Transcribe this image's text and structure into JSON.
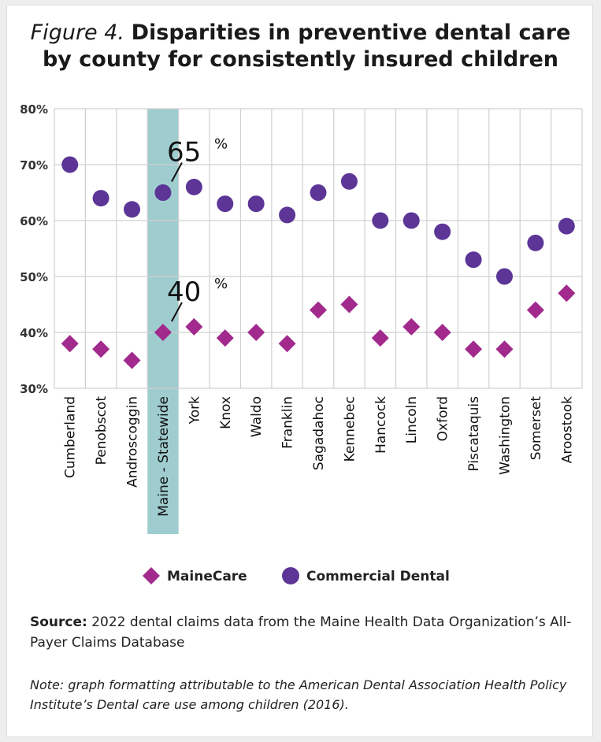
{
  "title": {
    "figure_label": "Figure 4.",
    "line1": "Disparities in preventive dental care",
    "line2": "by county for consistently insured children"
  },
  "colors": {
    "mainecare": "#a12a8c",
    "commercial": "#5c3596",
    "highlight": "#9fcdcf",
    "grid": "#d0d0d0"
  },
  "chart_data": {
    "type": "scatter",
    "categories": [
      "Cumberland",
      "Penobscot",
      "Androscoggin",
      "Maine - Statewide",
      "York",
      "Knox",
      "Waldo",
      "Franklin",
      "Sagadahoc",
      "Kennebec",
      "Hancock",
      "Lincoln",
      "Oxford",
      "Piscataquis",
      "Washington",
      "Somerset",
      "Aroostook"
    ],
    "series": [
      {
        "name": "MaineCare",
        "marker": "diamond",
        "values": [
          38,
          37,
          35,
          40,
          41,
          39,
          40,
          38,
          44,
          45,
          39,
          41,
          40,
          37,
          37,
          44,
          47
        ]
      },
      {
        "name": "Commercial Dental",
        "marker": "circle",
        "values": [
          70,
          64,
          62,
          65,
          66,
          63,
          63,
          61,
          65,
          67,
          60,
          60,
          58,
          53,
          50,
          56,
          59
        ]
      }
    ],
    "ylim": [
      30,
      80
    ],
    "yticks": [
      "30%",
      "40%",
      "50%",
      "60%",
      "70%",
      "80%"
    ],
    "highlight_category": "Maine - Statewide",
    "annotations": [
      {
        "value": "65",
        "unit": "%"
      },
      {
        "value": "40",
        "unit": "%"
      }
    ],
    "legend_position": "bottom",
    "grid": true
  },
  "source": {
    "label": "Source:",
    "text": " 2022 dental claims data from the Maine Health Data Organization’s All-Payer Claims Database"
  },
  "note": "Note: graph formatting attributable to the American Dental Association Health Policy Institute’s Dental care use among children (2016)."
}
